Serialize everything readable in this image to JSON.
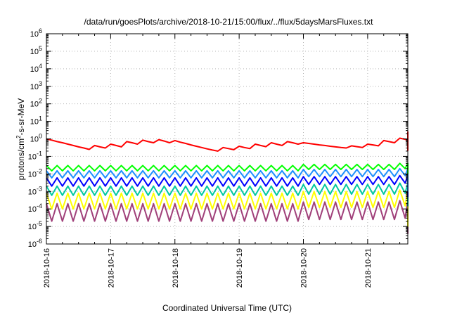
{
  "chart_data": {
    "type": "line",
    "title": "/data/run/goesPlots/archive/2018-10-21/15:00/flux/../flux/5daysMarsFluxes.txt",
    "xlabel": "Coordinated Universal Time (UTC)",
    "ylabel": {
      "base": "protons/cm",
      "sup": "2",
      "rest": "-s-sr-MeV"
    },
    "y_scale": "log",
    "ylim": [
      1e-06,
      1000000.0
    ],
    "y_ticks": [
      {
        "value": 1e-06,
        "base": "10",
        "exp": "-6"
      },
      {
        "value": 1e-05,
        "base": "10",
        "exp": "-5"
      },
      {
        "value": 0.0001,
        "base": "10",
        "exp": "-4"
      },
      {
        "value": 0.001,
        "base": "10",
        "exp": "-3"
      },
      {
        "value": 0.01,
        "base": "10",
        "exp": "-2"
      },
      {
        "value": 0.1,
        "base": "10",
        "exp": "-1"
      },
      {
        "value": 1,
        "base": "10",
        "exp": "0"
      },
      {
        "value": 10,
        "base": "10",
        "exp": "1"
      },
      {
        "value": 100,
        "base": "10",
        "exp": "2"
      },
      {
        "value": 1000.0,
        "base": "10",
        "exp": "3"
      },
      {
        "value": 10000.0,
        "base": "10",
        "exp": "4"
      },
      {
        "value": 100000.0,
        "base": "10",
        "exp": "5"
      },
      {
        "value": 1000000.0,
        "base": "10",
        "exp": "6"
      }
    ],
    "xlim": [
      "2018-10-16T00:00",
      "2018-10-21T15:00"
    ],
    "x_ticks": [
      "2018-10-16",
      "2018-10-17",
      "2018-10-18",
      "2018-10-19",
      "2018-10-20",
      "2018-10-21"
    ],
    "grid": true,
    "legend": "none",
    "sample_step_hours": 2,
    "series": [
      {
        "color": "#ff0000",
        "values": [
          1,
          0.85,
          0.7,
          0.6,
          0.5,
          0.42,
          0.35,
          0.3,
          0.25,
          0.42,
          0.35,
          0.3,
          0.5,
          0.42,
          0.35,
          0.7,
          0.6,
          0.5,
          0.85,
          0.7,
          0.6,
          0.9,
          0.75,
          0.6,
          0.8,
          0.65,
          0.55,
          0.45,
          0.38,
          0.32,
          0.27,
          0.23,
          0.2,
          0.32,
          0.28,
          0.24,
          0.38,
          0.32,
          0.28,
          0.5,
          0.42,
          0.36,
          0.6,
          0.5,
          0.42,
          0.7,
          0.6,
          0.5,
          0.6,
          0.55,
          0.5,
          0.45,
          0.42,
          0.38,
          0.35,
          0.32,
          0.3,
          0.4,
          0.36,
          0.32,
          0.5,
          0.45,
          0.4,
          0.8,
          0.7,
          0.6,
          1.1,
          0.95,
          0.8,
          1.5,
          1.3,
          1.1,
          1.4,
          1.3,
          1.2,
          1.1,
          1.0,
          0.9,
          0.8,
          0.72,
          0.65,
          0.9,
          0.8,
          0.7,
          1.4,
          1.2,
          1.0,
          2.0,
          1.7,
          1.5,
          2.2,
          2.0,
          1.8,
          1.6,
          1.2,
          0.9,
          0.7,
          0.55,
          0.45,
          0.6,
          0.5,
          0.42,
          0.7,
          0.6,
          0.5,
          1.2,
          1.0,
          0.85,
          2.0,
          1.7,
          1.5,
          2.5,
          2.2,
          1.9,
          2.4,
          2.1,
          1.9,
          1.7,
          1.4,
          1.2,
          1.0,
          0.85,
          0.72,
          0.6,
          0.52,
          0.45,
          0.4,
          0.35,
          0.3,
          0.27,
          0.25,
          0.22,
          0.35
        ]
      },
      {
        "color": "#00ff00",
        "values": [
          0.03,
          0.015,
          0.03,
          0.015,
          0.03,
          0.015,
          0.03,
          0.015,
          0.03,
          0.015,
          0.03,
          0.015,
          0.03,
          0.015,
          0.03,
          0.015,
          0.03,
          0.015,
          0.03,
          0.015,
          0.03,
          0.015,
          0.03,
          0.015,
          0.03,
          0.015,
          0.03,
          0.015,
          0.03,
          0.015,
          0.03,
          0.015,
          0.03,
          0.015,
          0.03,
          0.015,
          0.03,
          0.015,
          0.03,
          0.015,
          0.03,
          0.015,
          0.03,
          0.015,
          0.03,
          0.015,
          0.03,
          0.015,
          0.035,
          0.018,
          0.035,
          0.018,
          0.035,
          0.018,
          0.035,
          0.018,
          0.035,
          0.018,
          0.035,
          0.018,
          0.035,
          0.018,
          0.035,
          0.018,
          0.035,
          0.018,
          0.04,
          0.02,
          0.04,
          0.02,
          0.04,
          0.02,
          0.04,
          0.02,
          0.04,
          0.02,
          0.04,
          0.02,
          0.04,
          0.02,
          0.04,
          0.02,
          0.04,
          0.02,
          0.04,
          0.02,
          0.04,
          0.02,
          0.035,
          0.018,
          0.03,
          0.015,
          0.025,
          0.012,
          0.02,
          0.01,
          0.03,
          0.015,
          0.035,
          0.018,
          0.04,
          0.02,
          0.04,
          0.02,
          0.04,
          0.02,
          0.04,
          0.02,
          0.04,
          0.02,
          0.04,
          0.02,
          0.035,
          0.018,
          0.035,
          0.018,
          0.035,
          0.018,
          0.035,
          0.018,
          0.035,
          0.018,
          0.035,
          0.018,
          0.035,
          0.018,
          0.035,
          0.018,
          0.03,
          0.015,
          0.03,
          0.015,
          0.03
        ]
      },
      {
        "color": "#1e90ff",
        "values": [
          0.015,
          0.006,
          0.015,
          0.006,
          0.015,
          0.006,
          0.015,
          0.006,
          0.015,
          0.006,
          0.015,
          0.006,
          0.015,
          0.006,
          0.015,
          0.006,
          0.015,
          0.006,
          0.015,
          0.006,
          0.015,
          0.006,
          0.015,
          0.006,
          0.015,
          0.006,
          0.015,
          0.006,
          0.015,
          0.006,
          0.015,
          0.006,
          0.015,
          0.006,
          0.015,
          0.006,
          0.015,
          0.006,
          0.015,
          0.006,
          0.015,
          0.006,
          0.015,
          0.006,
          0.015,
          0.006,
          0.015,
          0.006,
          0.018,
          0.007,
          0.018,
          0.007,
          0.018,
          0.007,
          0.018,
          0.007,
          0.018,
          0.007,
          0.018,
          0.007,
          0.018,
          0.007,
          0.018,
          0.007,
          0.018,
          0.007,
          0.02,
          0.008,
          0.02,
          0.008,
          0.02,
          0.008,
          0.02,
          0.008,
          0.02,
          0.008,
          0.02,
          0.008,
          0.02,
          0.008,
          0.02,
          0.008,
          0.02,
          0.008,
          0.02,
          0.008,
          0.02,
          0.008,
          0.015,
          0.005,
          0.01,
          0.003,
          0.006,
          0.002,
          0.003,
          0.001,
          0.008,
          0.004,
          0.015,
          0.006,
          0.02,
          0.008,
          0.02,
          0.008,
          0.02,
          0.008,
          0.02,
          0.008,
          0.02,
          0.008,
          0.02,
          0.008,
          0.018,
          0.007,
          0.018,
          0.007,
          0.018,
          0.007,
          0.018,
          0.007,
          0.018,
          0.007,
          0.018,
          0.007,
          0.018,
          0.007,
          0.018,
          0.007,
          0.015,
          0.006,
          0.015,
          0.006,
          0.015
        ]
      },
      {
        "color": "#0000ff",
        "values": [
          0.006,
          0.002,
          0.006,
          0.002,
          0.006,
          0.002,
          0.006,
          0.002,
          0.006,
          0.002,
          0.006,
          0.002,
          0.006,
          0.002,
          0.006,
          0.002,
          0.006,
          0.002,
          0.006,
          0.002,
          0.006,
          0.002,
          0.006,
          0.002,
          0.006,
          0.002,
          0.006,
          0.002,
          0.006,
          0.002,
          0.006,
          0.002,
          0.006,
          0.002,
          0.006,
          0.002,
          0.006,
          0.002,
          0.006,
          0.002,
          0.006,
          0.002,
          0.006,
          0.002,
          0.006,
          0.002,
          0.006,
          0.002,
          0.007,
          0.0025,
          0.007,
          0.0025,
          0.007,
          0.0025,
          0.007,
          0.0025,
          0.007,
          0.0025,
          0.007,
          0.0025,
          0.007,
          0.0025,
          0.007,
          0.0025,
          0.007,
          0.0025,
          0.008,
          0.003,
          0.008,
          0.003,
          0.008,
          0.003,
          0.008,
          0.003,
          0.008,
          0.003,
          0.008,
          0.003,
          0.008,
          0.003,
          0.008,
          0.003,
          0.008,
          0.003,
          0.008,
          0.003,
          0.008,
          0.003,
          0.006,
          0.002,
          0.004,
          0.0012,
          0.002,
          0.0007,
          0.0012,
          0.0005,
          0.003,
          0.0012,
          0.006,
          0.002,
          0.008,
          0.003,
          0.008,
          0.003,
          0.008,
          0.003,
          0.008,
          0.003,
          0.008,
          0.003,
          0.008,
          0.003,
          0.007,
          0.0025,
          0.007,
          0.0025,
          0.007,
          0.0025,
          0.007,
          0.0025,
          0.007,
          0.0025,
          0.007,
          0.0025,
          0.007,
          0.0025,
          0.007,
          0.0025,
          0.006,
          0.002,
          0.006,
          0.002,
          0.006
        ]
      },
      {
        "color": "#00c8a0",
        "values": [
          0.002,
          0.0006,
          0.002,
          0.0006,
          0.002,
          0.0006,
          0.002,
          0.0006,
          0.002,
          0.0006,
          0.002,
          0.0006,
          0.002,
          0.0006,
          0.002,
          0.0006,
          0.002,
          0.0006,
          0.002,
          0.0006,
          0.002,
          0.0006,
          0.002,
          0.0006,
          0.002,
          0.0006,
          0.002,
          0.0006,
          0.002,
          0.0006,
          0.002,
          0.0006,
          0.002,
          0.0006,
          0.002,
          0.0006,
          0.002,
          0.0006,
          0.002,
          0.0006,
          0.002,
          0.0006,
          0.002,
          0.0006,
          0.002,
          0.0006,
          0.002,
          0.0006,
          0.0025,
          0.0007,
          0.0025,
          0.0007,
          0.0025,
          0.0007,
          0.0025,
          0.0007,
          0.0025,
          0.0007,
          0.0025,
          0.0007,
          0.0025,
          0.0007,
          0.0025,
          0.0007,
          0.0025,
          0.0007,
          0.003,
          0.0008,
          0.003,
          0.0008,
          0.003,
          0.0008,
          0.003,
          0.0008,
          0.003,
          0.0008,
          0.003,
          0.0008,
          0.003,
          0.0008,
          0.003,
          0.0008,
          0.003,
          0.0008,
          0.003,
          0.0008,
          0.003,
          0.0008,
          0.002,
          0.0006,
          0.0012,
          0.0004,
          0.0006,
          0.0002,
          0.00035,
          0.00015,
          0.001,
          0.0004,
          0.002,
          0.0006,
          0.003,
          0.0008,
          0.003,
          0.0008,
          0.003,
          0.0008,
          0.003,
          0.0008,
          0.003,
          0.0008,
          0.003,
          0.0008,
          0.0025,
          0.0007,
          0.0025,
          0.0007,
          0.0025,
          0.0007,
          0.0025,
          0.0007,
          0.0025,
          0.0007,
          0.0025,
          0.0007,
          0.0025,
          0.0007,
          0.0025,
          0.0007,
          0.002,
          0.0006,
          0.002,
          0.0006,
          0.002
        ]
      },
      {
        "color": "#ffff00",
        "values": [
          0.0008,
          0.0001,
          0.0008,
          0.0001,
          0.0008,
          0.0001,
          0.0008,
          0.0001,
          0.0008,
          0.0001,
          0.0008,
          0.0001,
          0.0008,
          0.0001,
          0.0008,
          0.0001,
          0.0008,
          0.0001,
          0.0008,
          0.0001,
          0.0008,
          0.0001,
          0.0008,
          0.0001,
          0.0008,
          0.0001,
          0.0008,
          0.0001,
          0.0008,
          0.0001,
          0.0008,
          0.0001,
          0.0008,
          0.0001,
          0.0008,
          0.0001,
          0.0008,
          0.0001,
          0.0008,
          0.0001,
          0.0008,
          0.0001,
          0.0008,
          0.0001,
          0.0008,
          0.0001,
          0.0008,
          0.0001,
          0.001,
          0.00012,
          0.001,
          0.00012,
          0.001,
          0.00012,
          0.001,
          0.00012,
          0.001,
          0.00012,
          0.001,
          0.00012,
          0.001,
          0.00012,
          0.001,
          0.00012,
          0.001,
          0.00012,
          0.0012,
          0.00015,
          0.0012,
          0.00015,
          0.0012,
          0.00015,
          0.0012,
          0.00015,
          0.0012,
          0.00015,
          0.0012,
          0.00015,
          0.0012,
          0.00015,
          0.0012,
          0.00015,
          0.0012,
          0.00015,
          0.0012,
          0.00015,
          0.0012,
          0.00015,
          0.0008,
          0.0001,
          0.0004,
          5e-05,
          0.0001,
          2e-05,
          5e-05,
          1e-05,
          0.0003,
          5e-05,
          0.0008,
          0.0001,
          0.0012,
          0.00015,
          0.0012,
          0.00015,
          0.0012,
          0.00015,
          0.0012,
          0.00015,
          0.0012,
          0.00015,
          0.0012,
          0.00015,
          0.001,
          0.00012,
          0.001,
          0.00012,
          0.001,
          0.00012,
          0.001,
          0.00012,
          0.001,
          0.00012,
          0.001,
          0.00012,
          0.001,
          0.00012,
          0.001,
          0.00012,
          0.0008,
          0.0001,
          0.0008,
          0.0001,
          0.0008
        ]
      },
      {
        "color": "#a0407a",
        "values": [
          0.0002,
          2e-05,
          0.0002,
          2e-05,
          0.0002,
          2e-05,
          0.0002,
          2e-05,
          0.0002,
          2e-05,
          0.0002,
          2e-05,
          0.0002,
          2e-05,
          0.0002,
          2e-05,
          0.0002,
          2e-05,
          0.0002,
          2e-05,
          0.0002,
          2e-05,
          0.0002,
          2e-05,
          0.0002,
          2e-05,
          0.0002,
          2e-05,
          0.0002,
          2e-05,
          0.0002,
          2e-05,
          0.0002,
          2e-05,
          0.0002,
          2e-05,
          0.0002,
          2e-05,
          0.0002,
          2e-05,
          0.0002,
          2e-05,
          0.0002,
          2e-05,
          0.0002,
          2e-05,
          0.0002,
          2e-05,
          0.00025,
          2.5e-05,
          0.00025,
          2.5e-05,
          0.00025,
          2.5e-05,
          0.00025,
          2.5e-05,
          0.00025,
          2.5e-05,
          0.00025,
          2.5e-05,
          0.00025,
          2.5e-05,
          0.00025,
          2.5e-05,
          0.00025,
          2.5e-05,
          0.0003,
          3e-05,
          0.0003,
          3e-05,
          0.0003,
          3e-05,
          0.0003,
          3e-05,
          0.0003,
          3e-05,
          0.0003,
          3e-05,
          0.0003,
          3e-05,
          0.0003,
          3e-05,
          0.0003,
          3e-05,
          0.0003,
          3e-05,
          0.0003,
          3e-05,
          0.0002,
          2e-05,
          0.0001,
          1e-05,
          3e-05,
          6e-06,
          1e-05,
          4e-06,
          8e-05,
          1e-05,
          0.0002,
          2e-05,
          0.0003,
          3e-05,
          0.0003,
          3e-05,
          0.0003,
          3e-05,
          0.0003,
          3e-05,
          0.0003,
          3e-05,
          0.0003,
          3e-05,
          0.00025,
          2.5e-05,
          0.00025,
          2.5e-05,
          0.00025,
          2.5e-05,
          0.00025,
          2.5e-05,
          0.00025,
          2.5e-05,
          0.00025,
          2.5e-05,
          0.00025,
          2.5e-05,
          0.00025,
          2.5e-05,
          0.0002,
          2e-05,
          0.0002,
          2e-05,
          0.0002
        ]
      }
    ]
  }
}
